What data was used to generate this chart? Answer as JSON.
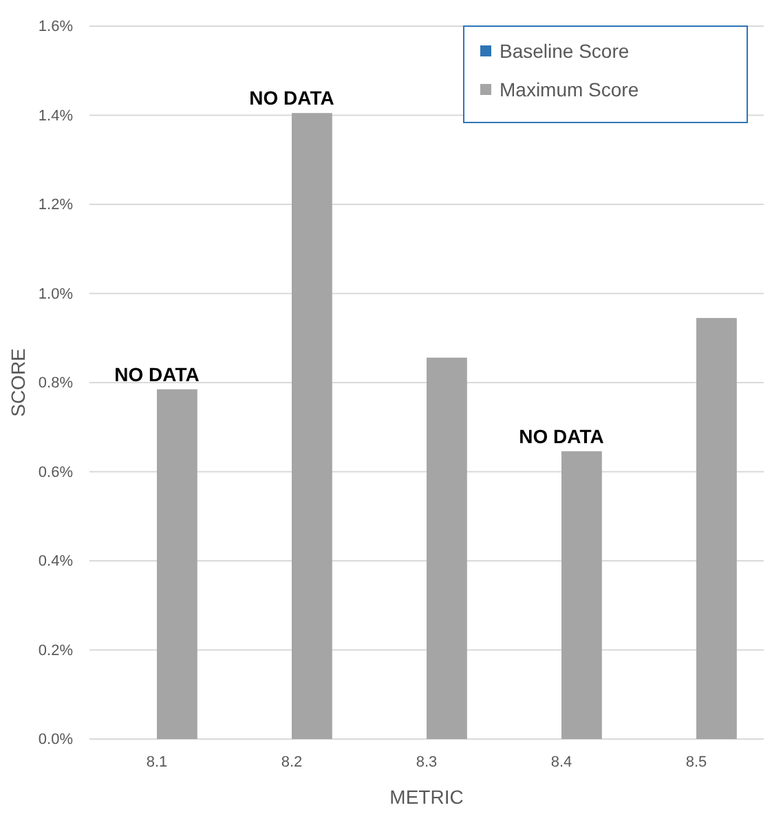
{
  "chart_data": {
    "type": "bar",
    "xlabel": "METRIC",
    "ylabel": "SCORE",
    "categories": [
      "8.1",
      "8.2",
      "8.3",
      "8.4",
      "8.5"
    ],
    "series": [
      {
        "name": "Baseline Score",
        "color": "#2e75b6",
        "values": [
          null,
          null,
          0,
          null,
          0
        ]
      },
      {
        "name": "Maximum Score",
        "color": "#a5a5a5",
        "values": [
          0.785,
          1.405,
          0.856,
          0.646,
          0.945
        ]
      }
    ],
    "ylim": [
      0,
      1.6
    ],
    "yticks": [
      {
        "value": 0,
        "label": "0.0%"
      },
      {
        "value": 0.2,
        "label": "0.2%"
      },
      {
        "value": 0.4,
        "label": "0.4%"
      },
      {
        "value": 0.6,
        "label": "0.6%"
      },
      {
        "value": 0.8,
        "label": "0.8%"
      },
      {
        "value": 1.0,
        "label": "1.0%"
      },
      {
        "value": 1.2,
        "label": "1.2%"
      },
      {
        "value": 1.4,
        "label": "1.4%"
      },
      {
        "value": 1.6,
        "label": "1.6%"
      }
    ],
    "grid": "y",
    "legend": "top right",
    "annotations": [
      {
        "text": "NO DATA",
        "x": "8.1",
        "y": 0.785
      },
      {
        "text": "NO DATA",
        "x": "8.2",
        "y": 1.405
      },
      {
        "text": "NO DATA",
        "x": "8.4",
        "y": 0.646
      }
    ]
  }
}
